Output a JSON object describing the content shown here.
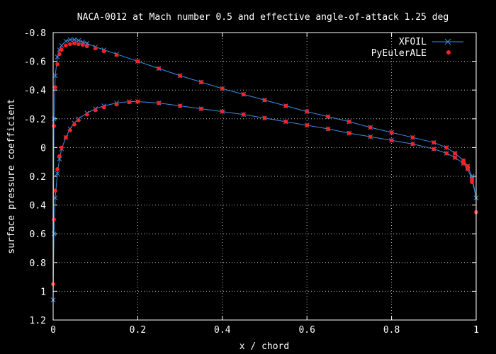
{
  "chart_data": {
    "type": "line",
    "title": "NACA-0012 at Mach number 0.5 and effective angle-of-attack 1.25 deg",
    "xlabel": "x / chord",
    "ylabel": "surface pressure coefficient",
    "xlim": [
      0,
      1
    ],
    "ylim": [
      1.2,
      -0.8
    ],
    "y_axis_inverted": true,
    "grid": true,
    "legend_position": "top-right",
    "x_ticks": [
      "0",
      "0.2",
      "0.4",
      "0.6",
      "0.8",
      "1"
    ],
    "x_tick_values": [
      0,
      0.2,
      0.4,
      0.6,
      0.8,
      1
    ],
    "y_ticks": [
      "-0.8",
      "-0.6",
      "-0.4",
      "-0.2",
      "0",
      "0.2",
      "0.4",
      "0.6",
      "0.8",
      "1",
      "1.2"
    ],
    "y_tick_values": [
      -0.8,
      -0.6,
      -0.4,
      -0.2,
      0,
      0.2,
      0.4,
      0.6,
      0.8,
      1,
      1.2
    ],
    "colors": {
      "background": "#000000",
      "axes": "#ffffff",
      "grid": "#ffffff",
      "xfoil": "#3d8ee0",
      "pyeuler": "#ff2020"
    },
    "series": [
      {
        "name": "XFOIL",
        "style": "line-with-x-markers",
        "upper_surface": {
          "x": [
            0,
            0.002,
            0.005,
            0.01,
            0.015,
            0.02,
            0.03,
            0.04,
            0.05,
            0.06,
            0.07,
            0.08,
            0.1,
            0.12,
            0.15,
            0.2,
            0.25,
            0.3,
            0.35,
            0.4,
            0.45,
            0.5,
            0.55,
            0.6,
            0.65,
            0.7,
            0.75,
            0.8,
            0.85,
            0.9,
            0.93,
            0.95,
            0.97,
            0.98,
            0.99,
            1.0
          ],
          "y": [
            1.06,
            -0.2,
            -0.5,
            -0.63,
            -0.68,
            -0.71,
            -0.74,
            -0.75,
            -0.75,
            -0.745,
            -0.735,
            -0.725,
            -0.7,
            -0.68,
            -0.65,
            -0.6,
            -0.55,
            -0.5,
            -0.455,
            -0.41,
            -0.37,
            -0.33,
            -0.29,
            -0.25,
            -0.215,
            -0.18,
            -0.14,
            -0.105,
            -0.07,
            -0.035,
            -0.0,
            0.04,
            0.09,
            0.13,
            0.2,
            0.35
          ]
        },
        "lower_surface": {
          "x": [
            0,
            0.002,
            0.005,
            0.01,
            0.015,
            0.02,
            0.03,
            0.04,
            0.05,
            0.06,
            0.08,
            0.1,
            0.12,
            0.15,
            0.18,
            0.2,
            0.25,
            0.3,
            0.35,
            0.4,
            0.45,
            0.5,
            0.55,
            0.6,
            0.65,
            0.7,
            0.75,
            0.8,
            0.85,
            0.9,
            0.93,
            0.95,
            0.97,
            0.98,
            0.99,
            1.0
          ],
          "y": [
            1.06,
            0.6,
            0.35,
            0.18,
            0.08,
            0.01,
            -0.07,
            -0.13,
            -0.17,
            -0.2,
            -0.24,
            -0.27,
            -0.29,
            -0.31,
            -0.32,
            -0.32,
            -0.31,
            -0.29,
            -0.27,
            -0.25,
            -0.23,
            -0.205,
            -0.18,
            -0.155,
            -0.13,
            -0.1,
            -0.075,
            -0.05,
            -0.025,
            0.01,
            0.04,
            0.07,
            0.11,
            0.15,
            0.22,
            0.35
          ]
        }
      },
      {
        "name": "PyEulerALE",
        "style": "points",
        "upper_surface": {
          "x": [
            0,
            0.002,
            0.005,
            0.01,
            0.015,
            0.02,
            0.03,
            0.04,
            0.05,
            0.06,
            0.07,
            0.08,
            0.1,
            0.12,
            0.15,
            0.2,
            0.25,
            0.3,
            0.35,
            0.4,
            0.45,
            0.5,
            0.55,
            0.6,
            0.65,
            0.7,
            0.75,
            0.8,
            0.85,
            0.9,
            0.93,
            0.95,
            0.97,
            0.98,
            0.99,
            1.0
          ],
          "y": [
            0.95,
            -0.15,
            -0.42,
            -0.58,
            -0.65,
            -0.68,
            -0.71,
            -0.72,
            -0.725,
            -0.72,
            -0.715,
            -0.705,
            -0.69,
            -0.67,
            -0.645,
            -0.6,
            -0.55,
            -0.5,
            -0.455,
            -0.41,
            -0.37,
            -0.33,
            -0.29,
            -0.25,
            -0.215,
            -0.18,
            -0.14,
            -0.105,
            -0.07,
            -0.035,
            -0.0,
            0.04,
            0.09,
            0.13,
            0.22,
            0.45
          ]
        },
        "lower_surface": {
          "x": [
            0,
            0.002,
            0.005,
            0.01,
            0.015,
            0.02,
            0.03,
            0.04,
            0.05,
            0.06,
            0.08,
            0.1,
            0.12,
            0.15,
            0.18,
            0.2,
            0.25,
            0.3,
            0.35,
            0.4,
            0.45,
            0.5,
            0.55,
            0.6,
            0.65,
            0.7,
            0.75,
            0.8,
            0.85,
            0.9,
            0.93,
            0.95,
            0.97,
            0.98,
            0.99,
            1.0
          ],
          "y": [
            0.95,
            0.5,
            0.3,
            0.15,
            0.06,
            0.0,
            -0.07,
            -0.12,
            -0.16,
            -0.19,
            -0.23,
            -0.26,
            -0.28,
            -0.3,
            -0.315,
            -0.32,
            -0.31,
            -0.29,
            -0.27,
            -0.25,
            -0.23,
            -0.205,
            -0.18,
            -0.155,
            -0.13,
            -0.1,
            -0.075,
            -0.05,
            -0.025,
            0.01,
            0.04,
            0.07,
            0.11,
            0.15,
            0.24,
            0.45
          ]
        }
      }
    ]
  }
}
